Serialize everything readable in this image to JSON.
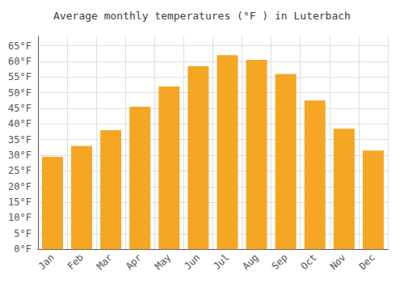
{
  "chart_data": {
    "type": "bar",
    "title": "Average monthly temperatures (°F ) in Luterbach",
    "categories": [
      "Jan",
      "Feb",
      "Mar",
      "Apr",
      "May",
      "Jun",
      "Jul",
      "Aug",
      "Sep",
      "Oct",
      "Nov",
      "Dec"
    ],
    "values": [
      29.5,
      33.0,
      38.0,
      45.5,
      52.0,
      58.5,
      62.0,
      60.5,
      56.0,
      47.5,
      38.5,
      31.5
    ],
    "color": "#F5A623",
    "ylim": [
      0,
      68
    ],
    "yticks": [
      {
        "value": 0,
        "label": "0°F"
      },
      {
        "value": 5,
        "label": "5°F"
      },
      {
        "value": 10,
        "label": "10°F"
      },
      {
        "value": 15,
        "label": "15°F"
      },
      {
        "value": 20,
        "label": "20°F"
      },
      {
        "value": 25,
        "label": "25°F"
      },
      {
        "value": 30,
        "label": "30°F"
      },
      {
        "value": 35,
        "label": "35°F"
      },
      {
        "value": 40,
        "label": "40°F"
      },
      {
        "value": 45,
        "label": "45°F"
      },
      {
        "value": 50,
        "label": "50°F"
      },
      {
        "value": 55,
        "label": "55°F"
      },
      {
        "value": 60,
        "label": "60°F"
      },
      {
        "value": 65,
        "label": "65°F"
      }
    ],
    "grid": true
  }
}
